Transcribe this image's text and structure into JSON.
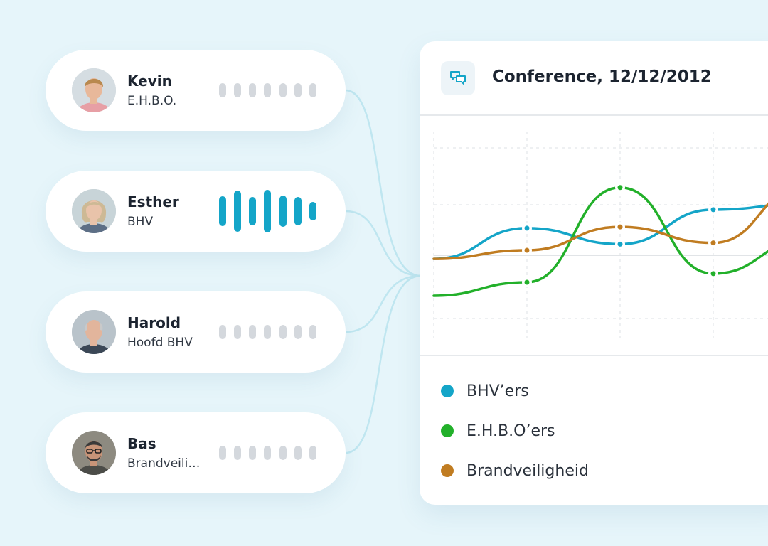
{
  "contacts": [
    {
      "name": "Kevin",
      "role": "E.H.B.O.",
      "speaking": false,
      "skin": "#e8b89a",
      "hair": "#b9894f",
      "shirt": "#e79fa5",
      "bg": "#d5dde2"
    },
    {
      "name": "Esther",
      "role": "BHV",
      "speaking": true,
      "skin": "#e9c3aa",
      "hair": "#cdb995",
      "shirt": "#5d6f86",
      "bg": "#c8d4d8"
    },
    {
      "name": "Harold",
      "role": "Hoofd BHV",
      "speaking": false,
      "skin": "#e2b59c",
      "hair": "#c9c9c9",
      "shirt": "#3b4756",
      "bg": "#b9c3ca"
    },
    {
      "name": "Bas",
      "role": "Brandveiligheid",
      "speaking": false,
      "skin": "#c89478",
      "hair": "#3a3a3a",
      "shirt": "#4b4c48",
      "bg": "#8d8a80"
    }
  ],
  "conference": {
    "title": "Conference, 12/12/2012",
    "icon": "chat-bubbles-icon"
  },
  "chart_data": {
    "type": "line",
    "grid": true,
    "series": [
      {
        "name": "BHV’ers",
        "color": "#14a5c8",
        "values": [
          0.3,
          0.55,
          0.42,
          0.7,
          0.75
        ]
      },
      {
        "name": "E.H.B.O’ers",
        "color": "#22b02a",
        "values": [
          0.0,
          0.11,
          0.88,
          0.18,
          0.45
        ]
      },
      {
        "name": "Brandveiligheid",
        "color": "#c07c21",
        "values": [
          0.3,
          0.37,
          0.56,
          0.43,
          0.9
        ]
      }
    ]
  },
  "colors": {
    "accent": "#14a5c8",
    "wave_idle": "#d4d8dd",
    "connector": "#bfe6f0"
  }
}
